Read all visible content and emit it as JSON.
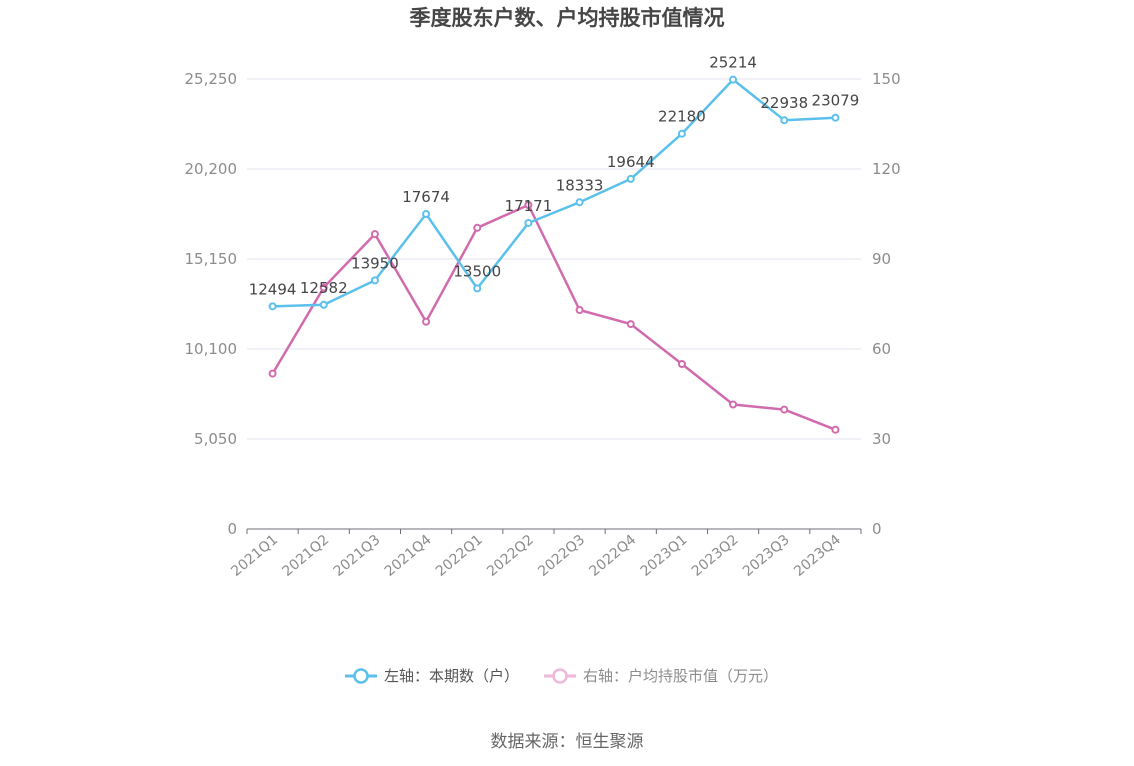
{
  "chart_data": {
    "type": "line",
    "title": "季度股东户数、户均持股市值情况",
    "categories": [
      "2021Q1",
      "2021Q2",
      "2021Q3",
      "2021Q4",
      "2022Q1",
      "2022Q2",
      "2022Q3",
      "2022Q4",
      "2023Q1",
      "2023Q2",
      "2023Q3",
      "2023Q4"
    ],
    "left_axis": {
      "ticks": [
        "0",
        "5,050",
        "10,100",
        "15,150",
        "20,200",
        "25,250"
      ],
      "ylim": [
        0,
        25250
      ]
    },
    "right_axis": {
      "ticks": [
        "0",
        "30",
        "60",
        "90",
        "120",
        "150"
      ],
      "ylim": [
        0,
        150
      ]
    },
    "series": [
      {
        "name": "左轴：本期数（户）",
        "axis": "left",
        "color": "#5bc0eb",
        "values": [
          12494,
          12582,
          13950,
          17674,
          13500,
          17171,
          18333,
          19644,
          22180,
          25214,
          22938,
          23079
        ],
        "labels": [
          "12494",
          "12582",
          "13950",
          "17674",
          "13500",
          "17171",
          "18333",
          "19644",
          "22180",
          "25214",
          "22938",
          "23079"
        ]
      },
      {
        "name": "右轴：户均持股市值（万元）",
        "axis": "right",
        "color": "#d16bad",
        "values": [
          51.8,
          80.5,
          98.3,
          69.1,
          100.4,
          108.0,
          73.0,
          68.3,
          55.0,
          41.5,
          39.8,
          33.1
        ]
      }
    ],
    "grid": true,
    "legend": "bottom-center",
    "source": "数据来源：恒生聚源"
  }
}
